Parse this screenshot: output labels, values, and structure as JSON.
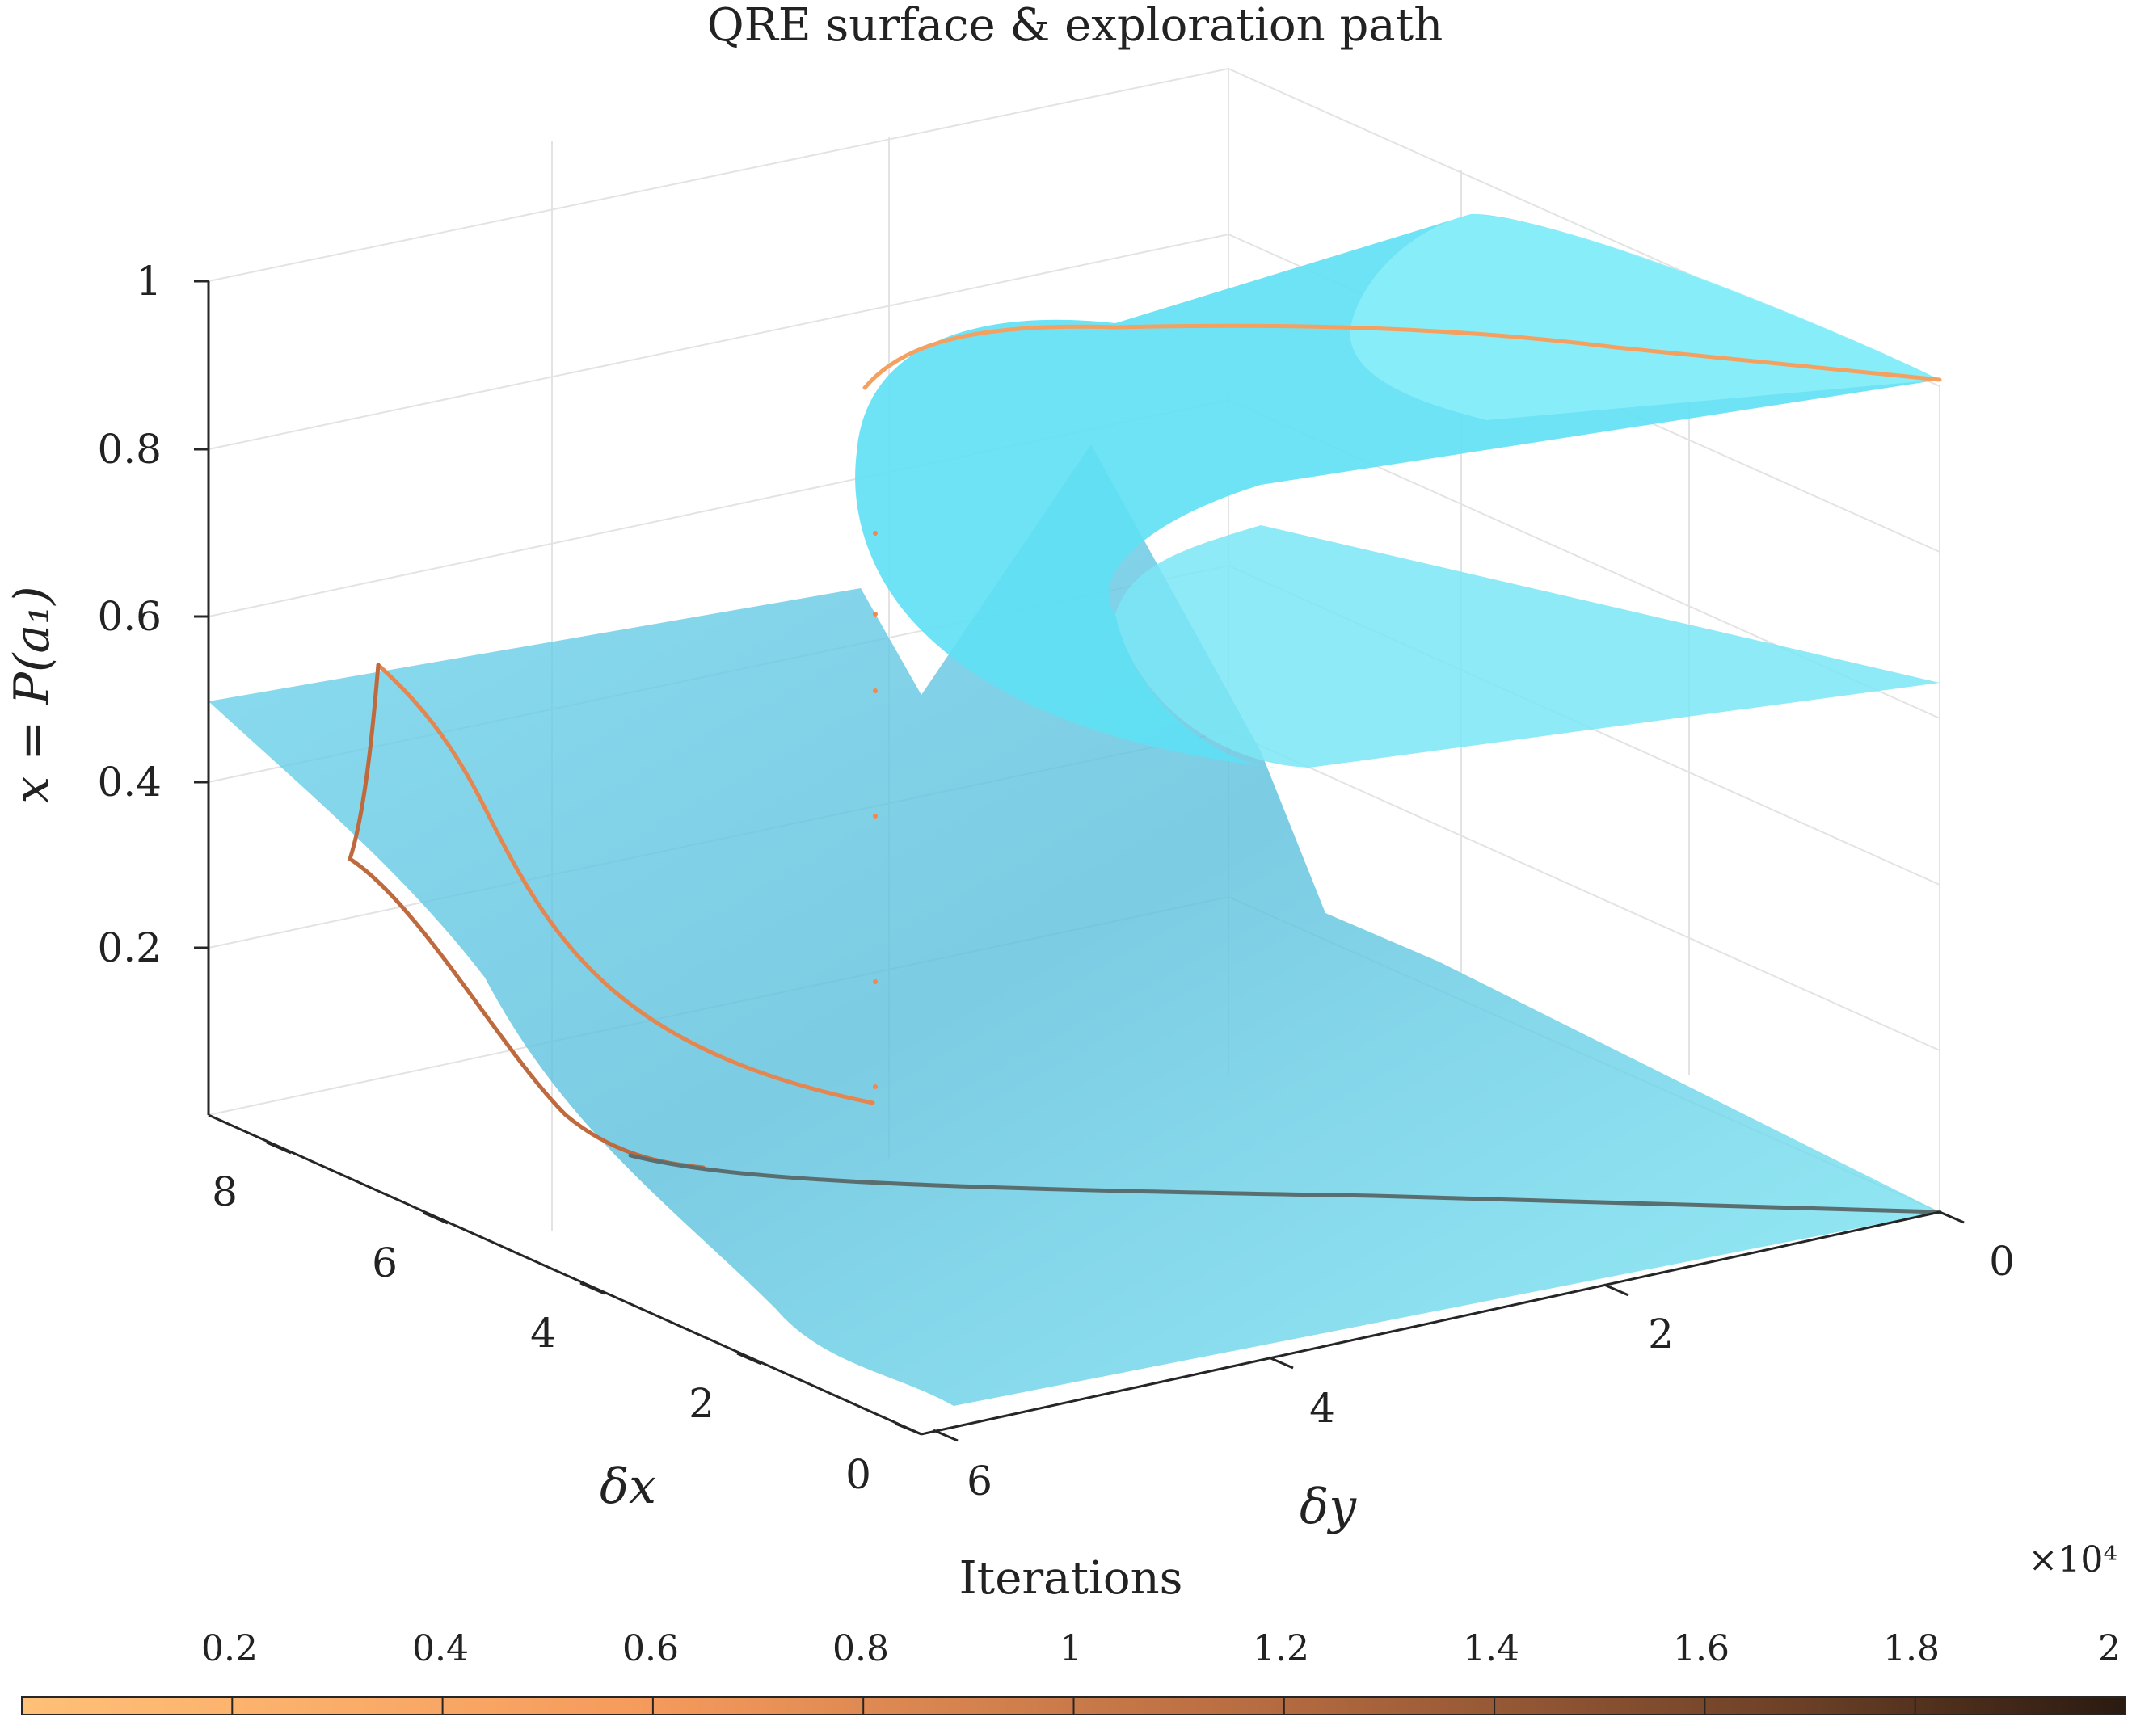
{
  "chart_data": {
    "type": "surface",
    "title": "QRE surface & exploration path",
    "axes": {
      "z": {
        "label": "x = P(a₁)",
        "ticks": [
          "0.2",
          "0.4",
          "0.6",
          "0.8",
          "1"
        ],
        "range": [
          0,
          1
        ]
      },
      "delta_x": {
        "label": "δx",
        "ticks": [
          "0",
          "2",
          "4",
          "6",
          "8"
        ],
        "range": [
          0,
          9
        ]
      },
      "delta_y": {
        "label": "δy",
        "ticks": [
          "0",
          "2",
          "4",
          "6"
        ],
        "range": [
          0,
          6.5
        ]
      }
    },
    "grid": true,
    "surface_color": "#5fdcf0",
    "path": {
      "description_series": "exploration path colored by iteration",
      "segments": [
        {
          "points": [
            [
              0,
              0,
              0.5
            ],
            [
              0.7,
              0.9,
              0.86
            ],
            [
              2.5,
              1.5,
              0.9
            ],
            [
              6.2,
              5.5,
              0.8
            ]
          ]
        },
        {
          "points": [
            [
              0,
              6.5,
              0.5
            ],
            [
              2.0,
              6.5,
              0.42
            ],
            [
              4.5,
              6.5,
              0.16
            ],
            [
              6.4,
              6.5,
              0.08
            ]
          ]
        },
        {
          "points": [
            [
              0,
              6.5,
              0.5
            ],
            [
              2.6,
              6.5,
              0.3
            ],
            [
              7.5,
              6.5,
              0.02
            ],
            [
              9,
              0,
              0.0
            ]
          ]
        }
      ]
    },
    "colorbar": {
      "label": "Iterations",
      "multiplier": "×10⁴",
      "ticks": [
        "0.2",
        "0.4",
        "0.6",
        "0.8",
        "1",
        "1.2",
        "1.4",
        "1.6",
        "1.8",
        "2"
      ],
      "range": [
        0,
        2
      ],
      "color_start": "#ffc078",
      "color_end": "#2a1a10",
      "placement": "bottom"
    }
  }
}
